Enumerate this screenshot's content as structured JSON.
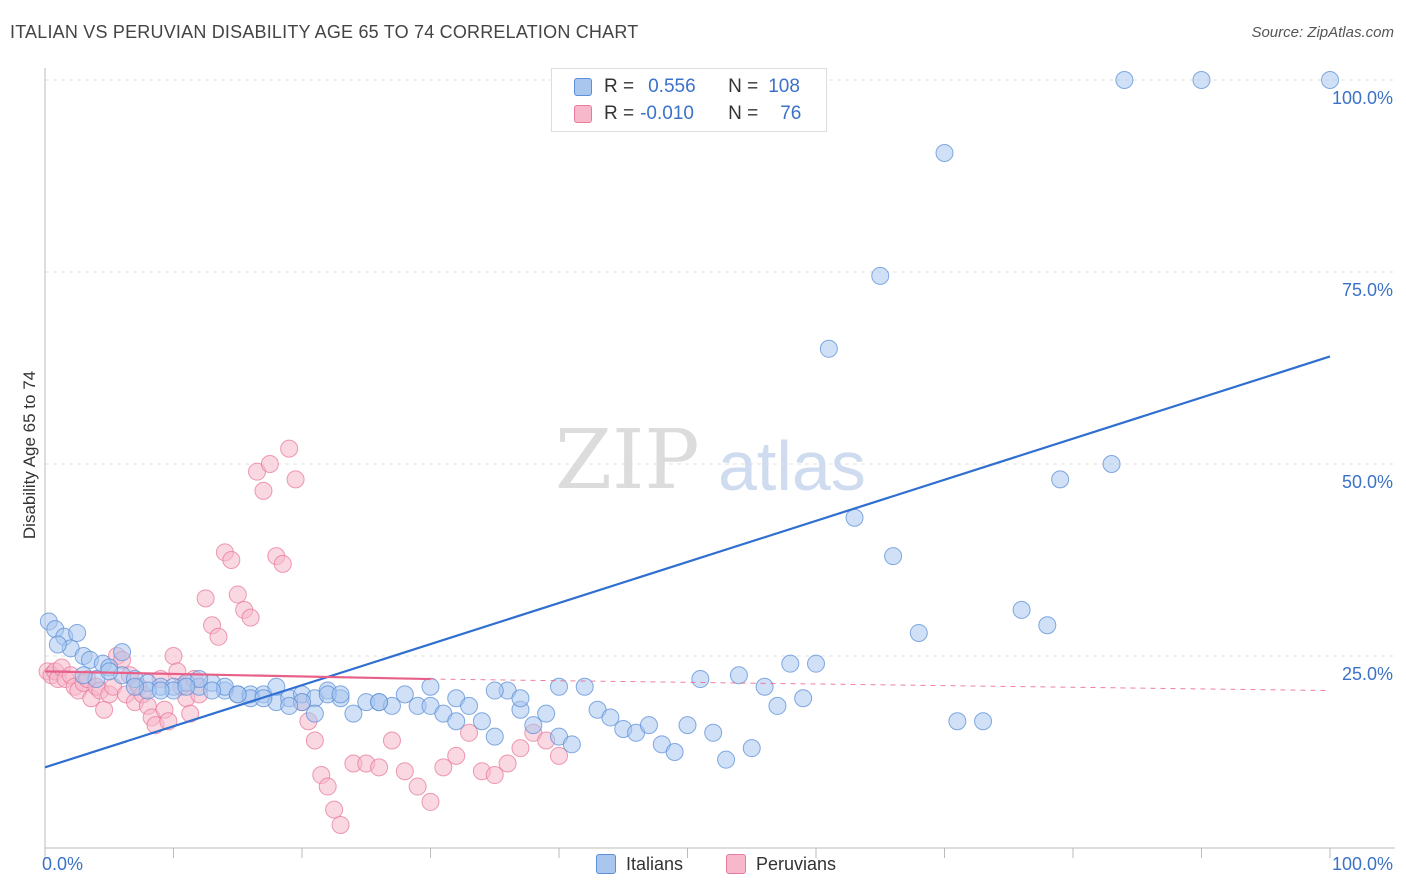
{
  "title": "ITALIAN VS PERUVIAN DISABILITY AGE 65 TO 74 CORRELATION CHART",
  "source": "Source: ZipAtlas.com",
  "watermark": {
    "zip": "ZIP",
    "atlas": "atlas"
  },
  "legend": {
    "rows": [
      {
        "r_label": "R =",
        "r_value": "0.556",
        "n_label": "N =",
        "n_value": "108"
      },
      {
        "r_label": "R =",
        "r_value": "-0.010",
        "n_label": "N =",
        "n_value": "76"
      }
    ]
  },
  "bottom_legend": {
    "italians": "Italians",
    "peruvians": "Peruvians"
  },
  "colors": {
    "italians_fill": "#a9c6ee",
    "italians_stroke": "#5b8fd8",
    "italians_line": "#2f6fd0",
    "peruvians_fill": "#f6b8ca",
    "peruvians_stroke": "#e87a9a",
    "peruvians_line": "#e8608a",
    "tick_label": "#3b72c8",
    "grid": "#e0e0e0"
  },
  "chart_data": {
    "type": "scatter",
    "title": "ITALIAN VS PERUVIAN DISABILITY AGE 65 TO 74 CORRELATION CHART",
    "xlabel": "",
    "ylabel": "Disability Age 65 to 74",
    "xlim": [
      0,
      100
    ],
    "ylim": [
      0,
      100
    ],
    "x_tick_labels": [
      "0.0%",
      "100.0%"
    ],
    "y_ticks": [
      25,
      50,
      75,
      100
    ],
    "y_tick_labels": [
      "25.0%",
      "50.0%",
      "75.0%",
      "100.0%"
    ],
    "grid": true,
    "series": [
      {
        "name": "Italians",
        "points": [
          [
            0.3,
            29.5
          ],
          [
            0.8,
            28.5
          ],
          [
            1.5,
            27.5
          ],
          [
            2,
            26
          ],
          [
            3,
            25
          ],
          [
            3.5,
            24.5
          ],
          [
            4.5,
            24
          ],
          [
            5,
            23.5
          ],
          [
            6,
            22.5
          ],
          [
            7,
            22
          ],
          [
            8,
            21.5
          ],
          [
            9,
            21
          ],
          [
            10,
            21
          ],
          [
            11,
            21.5
          ],
          [
            12,
            21
          ],
          [
            13,
            21.5
          ],
          [
            14,
            20.5
          ],
          [
            15,
            20
          ],
          [
            16,
            20
          ],
          [
            17,
            20
          ],
          [
            18,
            19
          ],
          [
            19,
            19.5
          ],
          [
            20,
            20
          ],
          [
            21,
            19.5
          ],
          [
            22,
            20.5
          ],
          [
            23,
            19.5
          ],
          [
            24,
            17.5
          ],
          [
            25,
            19
          ],
          [
            26,
            19
          ],
          [
            27,
            18.5
          ],
          [
            28,
            20
          ],
          [
            29,
            18.5
          ],
          [
            30,
            18.5
          ],
          [
            31,
            17.5
          ],
          [
            32,
            19.5
          ],
          [
            33,
            18.5
          ],
          [
            34,
            16.5
          ],
          [
            35,
            14.5
          ],
          [
            36,
            20.5
          ],
          [
            37,
            18
          ],
          [
            38,
            16
          ],
          [
            39,
            17.5
          ],
          [
            40,
            14.5
          ],
          [
            41,
            13.5
          ],
          [
            42,
            21
          ],
          [
            43,
            18
          ],
          [
            44,
            17
          ],
          [
            45,
            15.5
          ],
          [
            46,
            15
          ],
          [
            47,
            16
          ],
          [
            48,
            13.5
          ],
          [
            49,
            12.5
          ],
          [
            50,
            16
          ],
          [
            51,
            22
          ],
          [
            52,
            15
          ],
          [
            53,
            11.5
          ],
          [
            54,
            22.5
          ],
          [
            55,
            13
          ],
          [
            56,
            21
          ],
          [
            57,
            18.5
          ],
          [
            58,
            24
          ],
          [
            59,
            19.5
          ],
          [
            60,
            24
          ],
          [
            61,
            65
          ],
          [
            63,
            43
          ],
          [
            65,
            74.5
          ],
          [
            66,
            38
          ],
          [
            68,
            28
          ],
          [
            70,
            90.5
          ],
          [
            71,
            16.5
          ],
          [
            73,
            16.5
          ],
          [
            76,
            31
          ],
          [
            78,
            29
          ],
          [
            79,
            48
          ],
          [
            83,
            50
          ],
          [
            84,
            100
          ],
          [
            90,
            100
          ],
          [
            100,
            100
          ],
          [
            4,
            22
          ],
          [
            6,
            25.5
          ],
          [
            8,
            20.5
          ],
          [
            10,
            20.5
          ],
          [
            12,
            22
          ],
          [
            14,
            21
          ],
          [
            16,
            19.5
          ],
          [
            18,
            21
          ],
          [
            20,
            19
          ],
          [
            22,
            20
          ],
          [
            26,
            19
          ],
          [
            30,
            21
          ],
          [
            32,
            16.5
          ],
          [
            35,
            20.5
          ],
          [
            37,
            19.5
          ],
          [
            40,
            21
          ],
          [
            2.5,
            28
          ],
          [
            1,
            26.5
          ],
          [
            3,
            22.5
          ],
          [
            5,
            23
          ],
          [
            7,
            21
          ],
          [
            9,
            20.5
          ],
          [
            11,
            21
          ],
          [
            13,
            20.5
          ],
          [
            15,
            20
          ],
          [
            17,
            19.5
          ],
          [
            19,
            18.5
          ],
          [
            21,
            17.5
          ],
          [
            23,
            20
          ]
        ]
      },
      {
        "name": "Peruvians",
        "points": [
          [
            0.2,
            23
          ],
          [
            0.5,
            22.5
          ],
          [
            0.8,
            23
          ],
          [
            1,
            22
          ],
          [
            1.3,
            23.5
          ],
          [
            1.6,
            22
          ],
          [
            2,
            22.5
          ],
          [
            2.3,
            21
          ],
          [
            2.6,
            20.5
          ],
          [
            3,
            21.5
          ],
          [
            3.3,
            22
          ],
          [
            3.6,
            19.5
          ],
          [
            4,
            21
          ],
          [
            4.3,
            20.5
          ],
          [
            4.6,
            18
          ],
          [
            5,
            20
          ],
          [
            5.3,
            21
          ],
          [
            5.6,
            25
          ],
          [
            6,
            24.5
          ],
          [
            6.3,
            20
          ],
          [
            6.6,
            22.5
          ],
          [
            7,
            19
          ],
          [
            7.3,
            21
          ],
          [
            7.6,
            20
          ],
          [
            8,
            18.5
          ],
          [
            8.3,
            17
          ],
          [
            8.6,
            16
          ],
          [
            9,
            22
          ],
          [
            9.3,
            18
          ],
          [
            9.6,
            16.5
          ],
          [
            10,
            25
          ],
          [
            10.3,
            23
          ],
          [
            10.6,
            21
          ],
          [
            11,
            19.5
          ],
          [
            11.3,
            17.5
          ],
          [
            11.6,
            22
          ],
          [
            12,
            20
          ],
          [
            12.5,
            32.5
          ],
          [
            13,
            29
          ],
          [
            13.5,
            27.5
          ],
          [
            14,
            38.5
          ],
          [
            14.5,
            37.5
          ],
          [
            15,
            33
          ],
          [
            15.5,
            31
          ],
          [
            16,
            30
          ],
          [
            16.5,
            49
          ],
          [
            17,
            46.5
          ],
          [
            17.5,
            50
          ],
          [
            18,
            38
          ],
          [
            18.5,
            37
          ],
          [
            19,
            52
          ],
          [
            19.5,
            48
          ],
          [
            20,
            19
          ],
          [
            20.5,
            16.5
          ],
          [
            21,
            14
          ],
          [
            21.5,
            9.5
          ],
          [
            22,
            8
          ],
          [
            22.5,
            5
          ],
          [
            23,
            3
          ],
          [
            24,
            11
          ],
          [
            25,
            11
          ],
          [
            26,
            10.5
          ],
          [
            27,
            14
          ],
          [
            28,
            10
          ],
          [
            29,
            8
          ],
          [
            30,
            6
          ],
          [
            31,
            10.5
          ],
          [
            32,
            12
          ],
          [
            33,
            15
          ],
          [
            34,
            10
          ],
          [
            35,
            9.5
          ],
          [
            36,
            11
          ],
          [
            37,
            13
          ],
          [
            38,
            15
          ],
          [
            39,
            14
          ],
          [
            40,
            12
          ]
        ]
      }
    ],
    "trend_lines": [
      {
        "name": "Italians",
        "x": [
          0,
          100
        ],
        "y": [
          10.5,
          64
        ]
      },
      {
        "name": "Peruvians",
        "x": [
          0,
          30
        ],
        "y": [
          23,
          22
        ],
        "dashed_extension_to": [
          100,
          20.5
        ]
      }
    ]
  }
}
